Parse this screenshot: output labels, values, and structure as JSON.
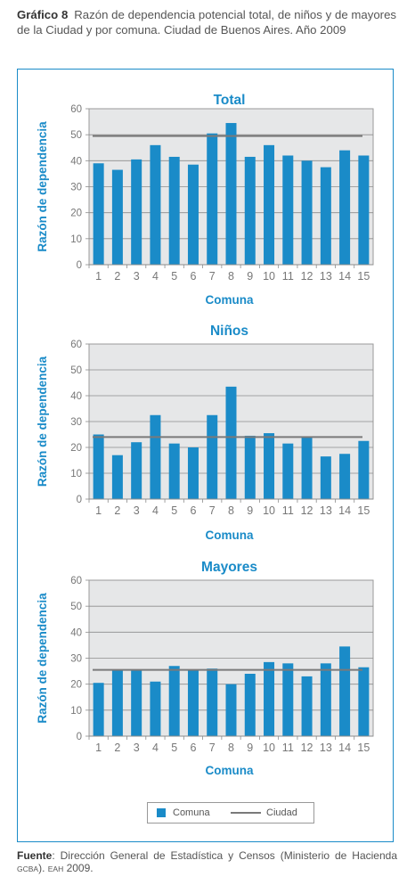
{
  "caption": {
    "label": "Gráfico 8",
    "text": "Razón de dependencia potencial total, de niños y de mayores de la Ciudad y por comuna. Ciudad de Buenos Aires. Año 2009"
  },
  "colors": {
    "bar": "#1a8bc8",
    "ciudad_line": "#7a7a7a",
    "plot_bg": "#e6e7e8",
    "accent": "#1a8bc8"
  },
  "legend": {
    "comuna": "Comuna",
    "ciudad": "Ciudad"
  },
  "source": {
    "label": "Fuente",
    "text": ": Dirección General de Estadística y Censos (Ministerio de Hacienda ",
    "gcba": "GCBA",
    "mid": "). ",
    "eah": "EAH",
    "end": " 2009."
  },
  "chart_data": [
    {
      "type": "bar",
      "title": "Total",
      "xlabel": "Comuna",
      "ylabel": "Razón de dependencia",
      "ylim": [
        0,
        60
      ],
      "yticks": [
        0,
        10,
        20,
        30,
        40,
        50,
        60
      ],
      "grid": true,
      "categories": [
        "1",
        "2",
        "3",
        "4",
        "5",
        "6",
        "7",
        "8",
        "9",
        "10",
        "11",
        "12",
        "13",
        "14",
        "15"
      ],
      "series": [
        {
          "name": "Comuna",
          "values": [
            39,
            36.5,
            40.5,
            46,
            41.5,
            38.5,
            50.5,
            54.5,
            41.5,
            46,
            42,
            40,
            37.5,
            44,
            42
          ]
        }
      ],
      "ciudad": 49.5
    },
    {
      "type": "bar",
      "title": "Niños",
      "xlabel": "Comuna",
      "ylabel": "Razón de dependencia",
      "ylim": [
        0,
        60
      ],
      "yticks": [
        0,
        10,
        20,
        30,
        40,
        50,
        60
      ],
      "grid": true,
      "categories": [
        "1",
        "2",
        "3",
        "4",
        "5",
        "6",
        "7",
        "8",
        "9",
        "10",
        "11",
        "12",
        "13",
        "14",
        "15"
      ],
      "series": [
        {
          "name": "Comuna",
          "values": [
            25,
            17,
            22,
            32.5,
            21.5,
            20,
            32.5,
            43.5,
            24.5,
            25.5,
            21.5,
            24,
            16.5,
            17.5,
            22.5
          ]
        }
      ],
      "ciudad": 24
    },
    {
      "type": "bar",
      "title": "Mayores",
      "xlabel": "Comuna",
      "ylabel": "Razón de dependencia",
      "ylim": [
        0,
        60
      ],
      "yticks": [
        0,
        10,
        20,
        30,
        40,
        50,
        60
      ],
      "grid": true,
      "categories": [
        "1",
        "2",
        "3",
        "4",
        "5",
        "6",
        "7",
        "8",
        "9",
        "10",
        "11",
        "12",
        "13",
        "14",
        "15"
      ],
      "series": [
        {
          "name": "Comuna",
          "values": [
            20.5,
            25.5,
            25.5,
            21,
            27,
            25.5,
            26,
            20,
            24,
            28.5,
            28,
            23,
            28,
            34.5,
            26.5
          ]
        }
      ],
      "ciudad": 25.5
    }
  ]
}
